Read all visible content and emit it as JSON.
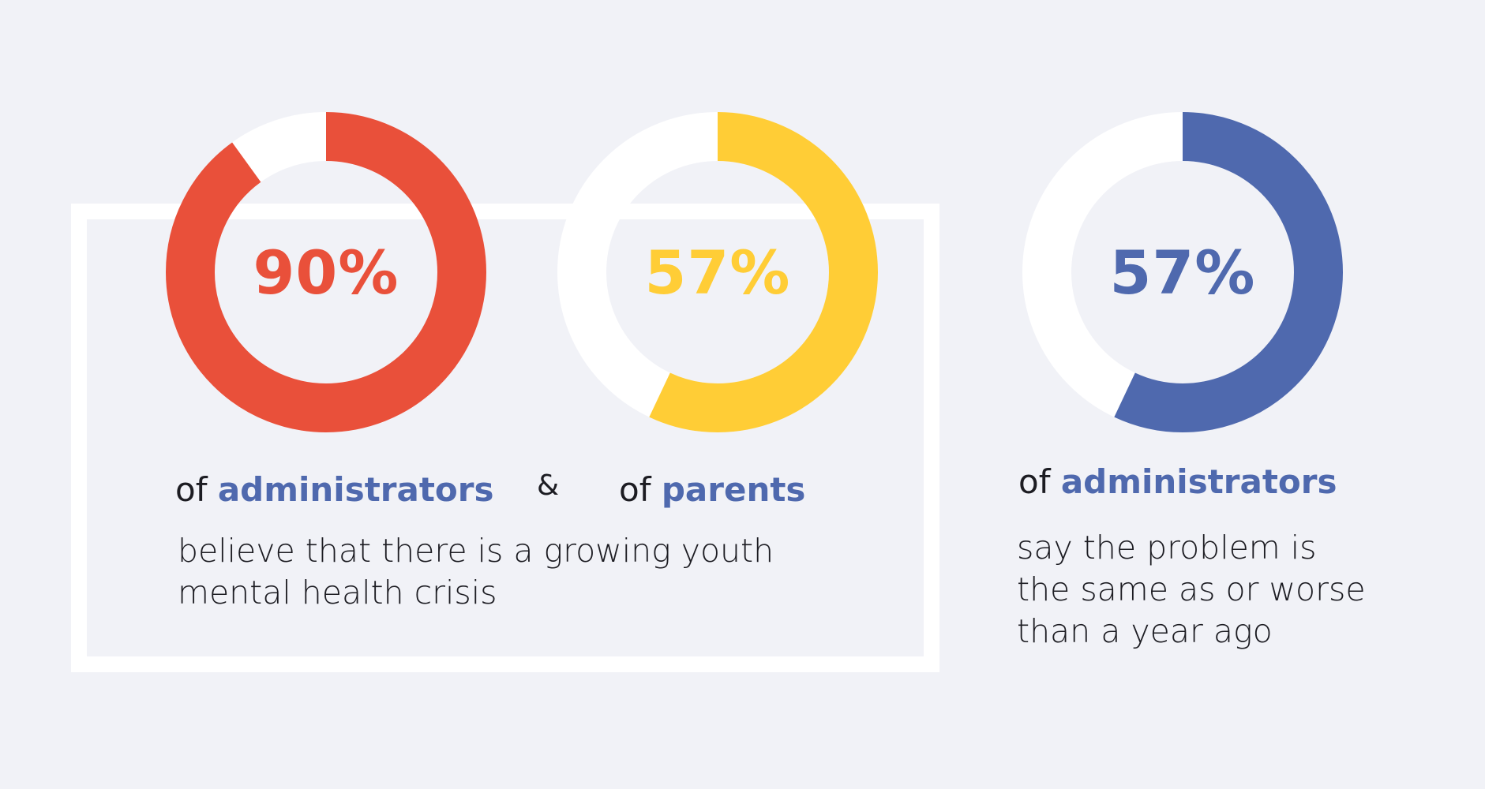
{
  "colors": {
    "background": "#f1f2f7",
    "track": "#ffffff",
    "red": "#e9503a",
    "yellow": "#ffcd36",
    "blue": "#4f69ae",
    "text": "#1c1c22"
  },
  "chart_data": [
    {
      "type": "pie",
      "title": "90%",
      "value": 90,
      "max": 100,
      "label": "administrators",
      "prefix": "of",
      "color": "#e9503a"
    },
    {
      "type": "pie",
      "title": "57%",
      "value": 57,
      "max": 100,
      "label": "parents",
      "prefix": "of",
      "color": "#ffcd36"
    },
    {
      "type": "pie",
      "title": "57%",
      "value": 57,
      "max": 100,
      "label": "administrators",
      "prefix": "of",
      "color": "#4f69ae"
    }
  ],
  "connector": "&",
  "group_text": {
    "line1": "believe that there is a growing youth",
    "line2": "mental health crisis"
  },
  "right_text": {
    "line1": "say the problem is",
    "line2": "the same as or worse",
    "line3": "than a year ago"
  }
}
